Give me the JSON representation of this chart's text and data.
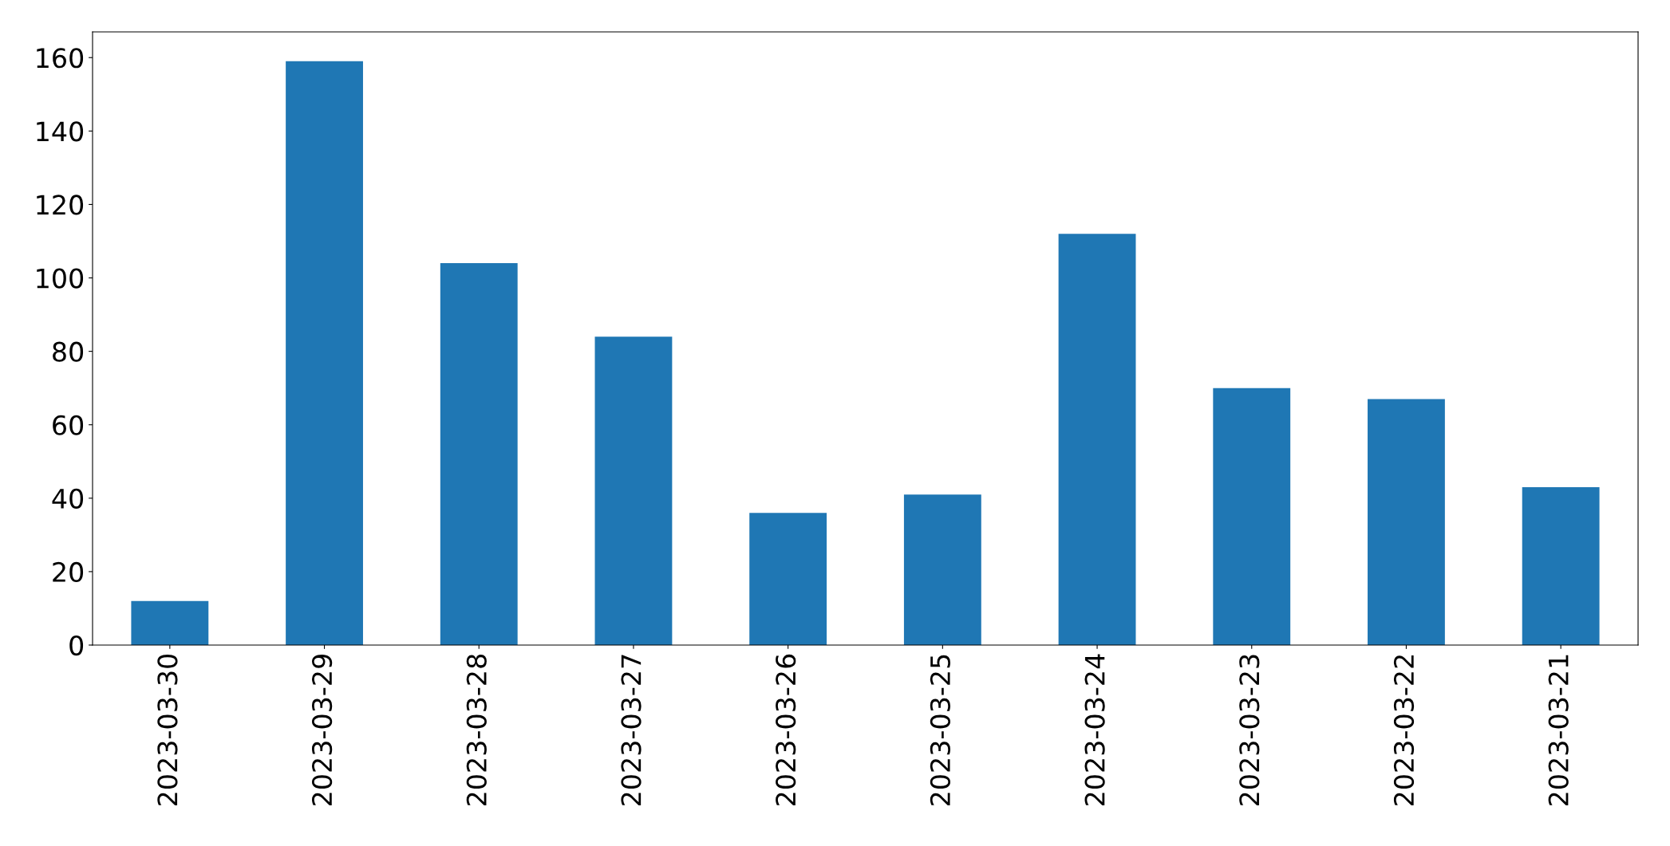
{
  "chart_data": {
    "type": "bar",
    "categories": [
      "2023-03-30",
      "2023-03-29",
      "2023-03-28",
      "2023-03-27",
      "2023-03-26",
      "2023-03-25",
      "2023-03-24",
      "2023-03-23",
      "2023-03-22",
      "2023-03-21"
    ],
    "values": [
      12,
      159,
      104,
      84,
      36,
      41,
      112,
      70,
      67,
      43
    ],
    "color": "#1f77b4",
    "ylim": [
      0,
      167
    ],
    "yticks": [
      0,
      20,
      40,
      60,
      80,
      100,
      120,
      140,
      160
    ],
    "grid": false,
    "legend": false
  }
}
